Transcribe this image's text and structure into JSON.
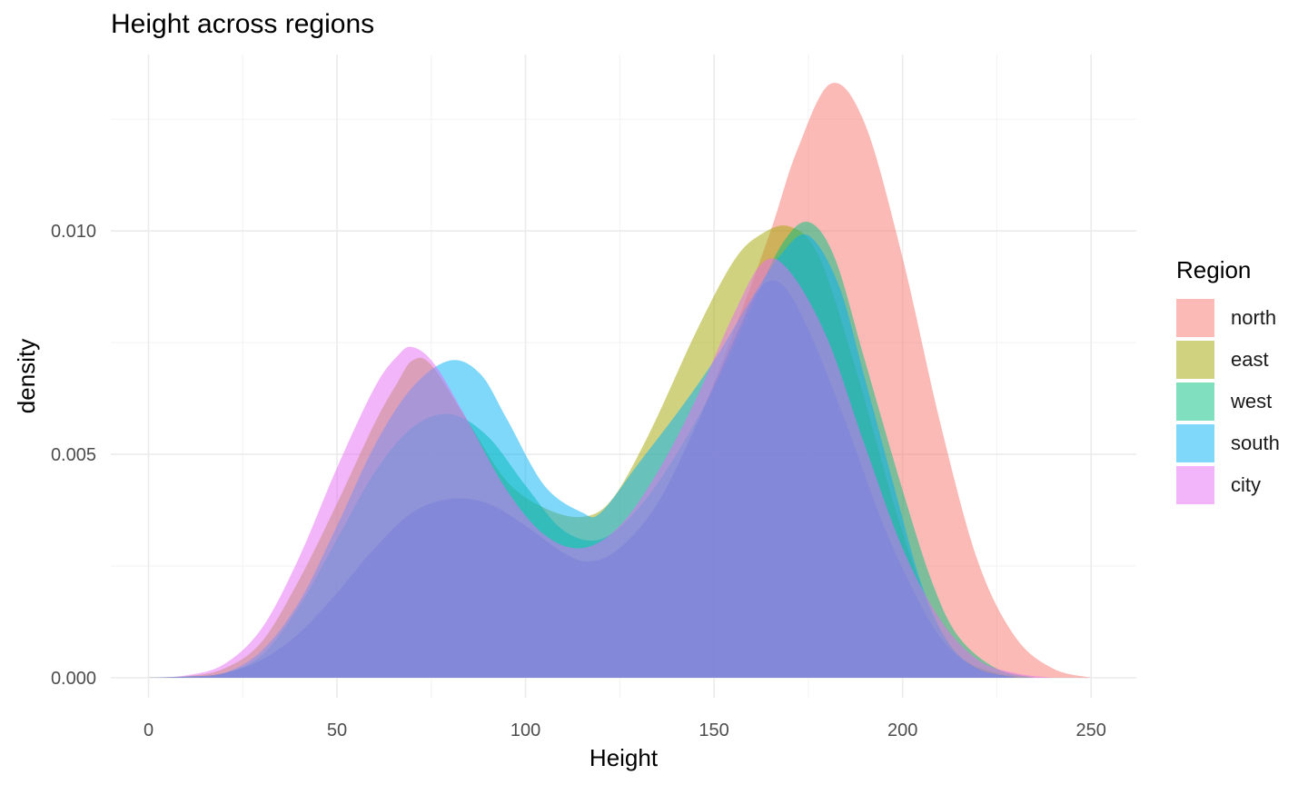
{
  "chart_data": {
    "type": "area",
    "subtype": "density",
    "title": "Height across regions",
    "xlabel": "Height",
    "ylabel": "density",
    "xlim": [
      -10,
      262
    ],
    "ylim": [
      -0.00045,
      0.01395
    ],
    "x_ticks": [
      0,
      50,
      100,
      150,
      200,
      250
    ],
    "x_tick_labels": [
      "0",
      "50",
      "100",
      "150",
      "200",
      "250"
    ],
    "y_ticks": [
      0.0,
      0.005,
      0.01
    ],
    "y_tick_labels": [
      "0.000",
      "0.005",
      "0.010"
    ],
    "grid": true,
    "legend_title": "Region",
    "legend_position": "right",
    "fill_opacity": 0.5,
    "series": [
      {
        "name": "north",
        "color": "#F8766D",
        "points": [
          [
            0,
            0
          ],
          [
            10,
            2e-05
          ],
          [
            20,
            0.0001
          ],
          [
            30,
            0.0004
          ],
          [
            40,
            0.001
          ],
          [
            50,
            0.0019
          ],
          [
            60,
            0.0029
          ],
          [
            70,
            0.0037
          ],
          [
            80,
            0.004
          ],
          [
            90,
            0.0039
          ],
          [
            100,
            0.0034
          ],
          [
            110,
            0.0028
          ],
          [
            117,
            0.0026
          ],
          [
            125,
            0.0029
          ],
          [
            135,
            0.0039
          ],
          [
            145,
            0.0056
          ],
          [
            155,
            0.0077
          ],
          [
            165,
            0.01
          ],
          [
            172,
            0.0118
          ],
          [
            181,
            0.0133
          ],
          [
            190,
            0.0124
          ],
          [
            200,
            0.0094
          ],
          [
            210,
            0.0057
          ],
          [
            220,
            0.0026
          ],
          [
            230,
            0.0009
          ],
          [
            240,
            0.0002
          ],
          [
            250,
            0
          ]
        ]
      },
      {
        "name": "east",
        "color": "#A3A500",
        "points": [
          [
            0,
            0
          ],
          [
            10,
            3e-05
          ],
          [
            20,
            0.0002
          ],
          [
            30,
            0.0008
          ],
          [
            40,
            0.0022
          ],
          [
            50,
            0.0039
          ],
          [
            60,
            0.0057
          ],
          [
            66,
            0.0066
          ],
          [
            70,
            0.0071
          ],
          [
            75,
            0.007
          ],
          [
            85,
            0.0057
          ],
          [
            95,
            0.0044
          ],
          [
            105,
            0.0038
          ],
          [
            115,
            0.0036
          ],
          [
            123,
            0.004
          ],
          [
            133,
            0.0055
          ],
          [
            145,
            0.0077
          ],
          [
            155,
            0.0093
          ],
          [
            162,
            0.0099
          ],
          [
            170,
            0.0101
          ],
          [
            178,
            0.0094
          ],
          [
            188,
            0.0068
          ],
          [
            198,
            0.0038
          ],
          [
            207,
            0.0016
          ],
          [
            215,
            0.0005
          ],
          [
            225,
            0.0001
          ],
          [
            235,
            0
          ]
        ]
      },
      {
        "name": "west",
        "color": "#00BF7D",
        "points": [
          [
            0,
            0
          ],
          [
            10,
            3e-05
          ],
          [
            20,
            0.0001
          ],
          [
            30,
            0.0005
          ],
          [
            40,
            0.0016
          ],
          [
            50,
            0.0031
          ],
          [
            60,
            0.0046
          ],
          [
            70,
            0.0056
          ],
          [
            80,
            0.0059
          ],
          [
            90,
            0.0054
          ],
          [
            100,
            0.0043
          ],
          [
            110,
            0.0033
          ],
          [
            120,
            0.0031
          ],
          [
            130,
            0.0038
          ],
          [
            140,
            0.005
          ],
          [
            150,
            0.0065
          ],
          [
            160,
            0.0083
          ],
          [
            168,
            0.0097
          ],
          [
            175,
            0.0102
          ],
          [
            182,
            0.0094
          ],
          [
            190,
            0.0071
          ],
          [
            200,
            0.0042
          ],
          [
            208,
            0.0021
          ],
          [
            215,
            0.0009
          ],
          [
            225,
            0.0002
          ],
          [
            235,
            0
          ]
        ]
      },
      {
        "name": "south",
        "color": "#00B0F6",
        "points": [
          [
            0,
            0
          ],
          [
            10,
            2e-05
          ],
          [
            20,
            0.0001
          ],
          [
            30,
            0.0006
          ],
          [
            40,
            0.0017
          ],
          [
            50,
            0.0034
          ],
          [
            60,
            0.0052
          ],
          [
            70,
            0.0065
          ],
          [
            80,
            0.0071
          ],
          [
            88,
            0.0068
          ],
          [
            95,
            0.0058
          ],
          [
            105,
            0.0043
          ],
          [
            115,
            0.0037
          ],
          [
            120,
            0.0037
          ],
          [
            130,
            0.0048
          ],
          [
            140,
            0.0059
          ],
          [
            150,
            0.0071
          ],
          [
            160,
            0.0085
          ],
          [
            168,
            0.0095
          ],
          [
            175,
            0.0099
          ],
          [
            183,
            0.0088
          ],
          [
            190,
            0.0067
          ],
          [
            198,
            0.0042
          ],
          [
            205,
            0.0021
          ],
          [
            212,
            0.0008
          ],
          [
            220,
            0.0002
          ],
          [
            230,
            0
          ]
        ]
      },
      {
        "name": "city",
        "color": "#E76BF3",
        "points": [
          [
            0,
            0
          ],
          [
            10,
            5e-05
          ],
          [
            20,
            0.0003
          ],
          [
            30,
            0.0011
          ],
          [
            40,
            0.0027
          ],
          [
            50,
            0.0047
          ],
          [
            60,
            0.0065
          ],
          [
            66,
            0.0072
          ],
          [
            70,
            0.0074
          ],
          [
            76,
            0.007
          ],
          [
            85,
            0.0057
          ],
          [
            95,
            0.0042
          ],
          [
            105,
            0.0032
          ],
          [
            115,
            0.0029
          ],
          [
            125,
            0.0034
          ],
          [
            135,
            0.0046
          ],
          [
            145,
            0.0062
          ],
          [
            155,
            0.0081
          ],
          [
            163,
            0.0093
          ],
          [
            170,
            0.0091
          ],
          [
            180,
            0.0076
          ],
          [
            190,
            0.0052
          ],
          [
            200,
            0.0029
          ],
          [
            210,
            0.0013
          ],
          [
            220,
            0.0004
          ],
          [
            230,
            0.0001
          ],
          [
            240,
            0
          ]
        ]
      },
      {
        "name": "",
        "color": "#7B7FE0",
        "points": [
          [
            0,
            0
          ],
          [
            10,
            2e-05
          ],
          [
            20,
            0.0001
          ],
          [
            30,
            0.0004
          ],
          [
            40,
            0.001
          ],
          [
            50,
            0.0019
          ],
          [
            60,
            0.0029
          ],
          [
            70,
            0.0037
          ],
          [
            80,
            0.004
          ],
          [
            90,
            0.0039
          ],
          [
            100,
            0.0034
          ],
          [
            110,
            0.0028
          ],
          [
            117,
            0.0026
          ],
          [
            125,
            0.0029
          ],
          [
            135,
            0.0039
          ],
          [
            145,
            0.0056
          ],
          [
            155,
            0.0075
          ],
          [
            162,
            0.0087
          ],
          [
            168,
            0.0088
          ],
          [
            175,
            0.0078
          ],
          [
            185,
            0.0057
          ],
          [
            195,
            0.0034
          ],
          [
            205,
            0.0016
          ],
          [
            212,
            0.0007
          ],
          [
            220,
            0.0002
          ],
          [
            230,
            0
          ]
        ]
      }
    ]
  }
}
